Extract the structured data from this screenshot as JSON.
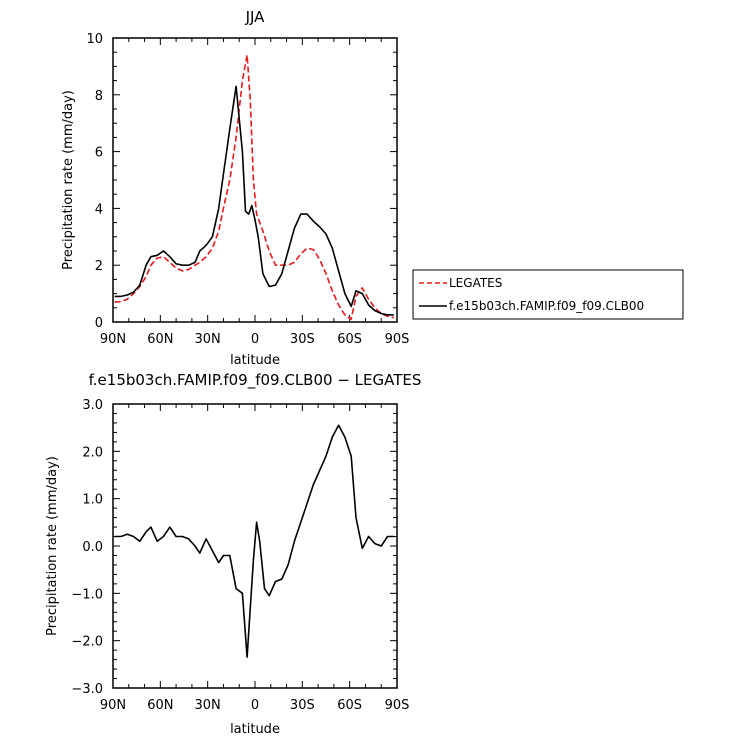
{
  "chart_data": [
    {
      "type": "line",
      "title": "JJA",
      "xlabel": "latitude",
      "ylabel": "Precipitation rate (mm/day)",
      "xlim": [
        90,
        -90
      ],
      "ylim": [
        0,
        10
      ],
      "x_ticks": [
        90,
        60,
        30,
        0,
        -30,
        -60,
        -90
      ],
      "x_tick_labels": [
        "90N",
        "60N",
        "30N",
        "0",
        "30S",
        "60S",
        "90S"
      ],
      "y_ticks": [
        0,
        2,
        4,
        6,
        8,
        10
      ],
      "y_tick_labels": [
        "0",
        "2",
        "4",
        "6",
        "8",
        "10"
      ],
      "legend_position": "right",
      "series": [
        {
          "name": "LEGATES",
          "color": "#e8191a",
          "dash": "dashed",
          "x": [
            89,
            85,
            81,
            77,
            73,
            69,
            66,
            62,
            58,
            54,
            50,
            46,
            42,
            38,
            35,
            31,
            27,
            23,
            20,
            16,
            12,
            8,
            5,
            3,
            1,
            -1,
            -5,
            -9,
            -13,
            -17,
            -21,
            -25,
            -29,
            -33,
            -37,
            -41,
            -45,
            -49,
            -53,
            -57,
            -61,
            -64,
            -68,
            -72,
            -76,
            -80,
            -84,
            -88
          ],
          "y": [
            0.7,
            0.72,
            0.8,
            1.0,
            1.25,
            1.6,
            2.0,
            2.25,
            2.3,
            2.1,
            1.9,
            1.8,
            1.85,
            2.0,
            2.1,
            2.3,
            2.6,
            3.2,
            4.0,
            5.0,
            6.5,
            8.5,
            9.4,
            7.8,
            5.0,
            3.8,
            3.2,
            2.5,
            2.0,
            2.0,
            2.0,
            2.1,
            2.4,
            2.6,
            2.55,
            2.2,
            1.7,
            1.1,
            0.6,
            0.25,
            0.1,
            0.9,
            1.2,
            0.8,
            0.5,
            0.3,
            0.2,
            0.15
          ]
        },
        {
          "name": "f.e15b03ch.FAMIP.f09_f09.CLB00",
          "color": "#000000",
          "dash": "solid",
          "x": [
            89,
            85,
            81,
            77,
            73,
            69,
            66,
            62,
            58,
            54,
            50,
            46,
            42,
            38,
            35,
            31,
            27,
            23,
            20,
            16,
            12,
            8,
            6,
            4,
            2,
            0,
            -2,
            -5,
            -9,
            -13,
            -17,
            -21,
            -25,
            -29,
            -33,
            -37,
            -41,
            -45,
            -49,
            -53,
            -57,
            -61,
            -64,
            -68,
            -72,
            -76,
            -80,
            -84,
            -88
          ],
          "y": [
            0.9,
            0.9,
            0.95,
            1.05,
            1.3,
            2.0,
            2.3,
            2.35,
            2.5,
            2.3,
            2.05,
            2.0,
            2.0,
            2.1,
            2.5,
            2.7,
            3.0,
            4.0,
            5.2,
            6.8,
            8.3,
            6.0,
            3.9,
            3.8,
            4.1,
            3.6,
            3.0,
            1.7,
            1.25,
            1.3,
            1.7,
            2.5,
            3.3,
            3.8,
            3.8,
            3.55,
            3.35,
            3.1,
            2.6,
            1.8,
            1.0,
            0.55,
            1.1,
            1.0,
            0.6,
            0.4,
            0.3,
            0.25,
            0.25
          ]
        }
      ]
    },
    {
      "type": "line",
      "title": "f.e15b03ch.FAMIP.f09_f09.CLB00 − LEGATES",
      "xlabel": "latitude",
      "ylabel": "Precipitation rate (mm/day)",
      "xlim": [
        90,
        -90
      ],
      "ylim": [
        -3,
        3
      ],
      "x_ticks": [
        90,
        60,
        30,
        0,
        -30,
        -60,
        -90
      ],
      "x_tick_labels": [
        "90N",
        "60N",
        "30N",
        "0",
        "30S",
        "60S",
        "90S"
      ],
      "y_ticks": [
        -3,
        -2,
        -1,
        0,
        1,
        2,
        3
      ],
      "y_tick_labels": [
        "−3.0",
        "−2.0",
        "−1.0",
        "0.0",
        "1.0",
        "2.0",
        "3.0"
      ],
      "series": [
        {
          "name": "",
          "color": "#000000",
          "dash": "solid",
          "x": [
            89,
            85,
            81,
            77,
            73,
            69,
            66,
            62,
            58,
            54,
            50,
            46,
            42,
            38,
            35,
            31,
            27,
            23,
            20,
            16,
            12,
            8,
            5,
            3,
            1,
            -1,
            -3,
            -6,
            -9,
            -13,
            -17,
            -21,
            -25,
            -29,
            -33,
            -37,
            -41,
            -45,
            -49,
            -53,
            -57,
            -61,
            -64,
            -68,
            -72,
            -76,
            -80,
            -84,
            -88
          ],
          "y": [
            0.2,
            0.2,
            0.25,
            0.2,
            0.1,
            0.3,
            0.4,
            0.1,
            0.2,
            0.4,
            0.2,
            0.2,
            0.15,
            0.0,
            -0.15,
            0.15,
            -0.1,
            -0.35,
            -0.2,
            -0.2,
            -0.9,
            -1.0,
            -2.35,
            -1.3,
            -0.3,
            0.5,
            0.1,
            -0.9,
            -1.05,
            -0.75,
            -0.7,
            -0.4,
            0.1,
            0.5,
            0.9,
            1.3,
            1.6,
            1.9,
            2.3,
            2.55,
            2.3,
            1.9,
            0.6,
            -0.05,
            0.2,
            0.05,
            0.0,
            0.2,
            0.2
          ]
        }
      ]
    }
  ]
}
